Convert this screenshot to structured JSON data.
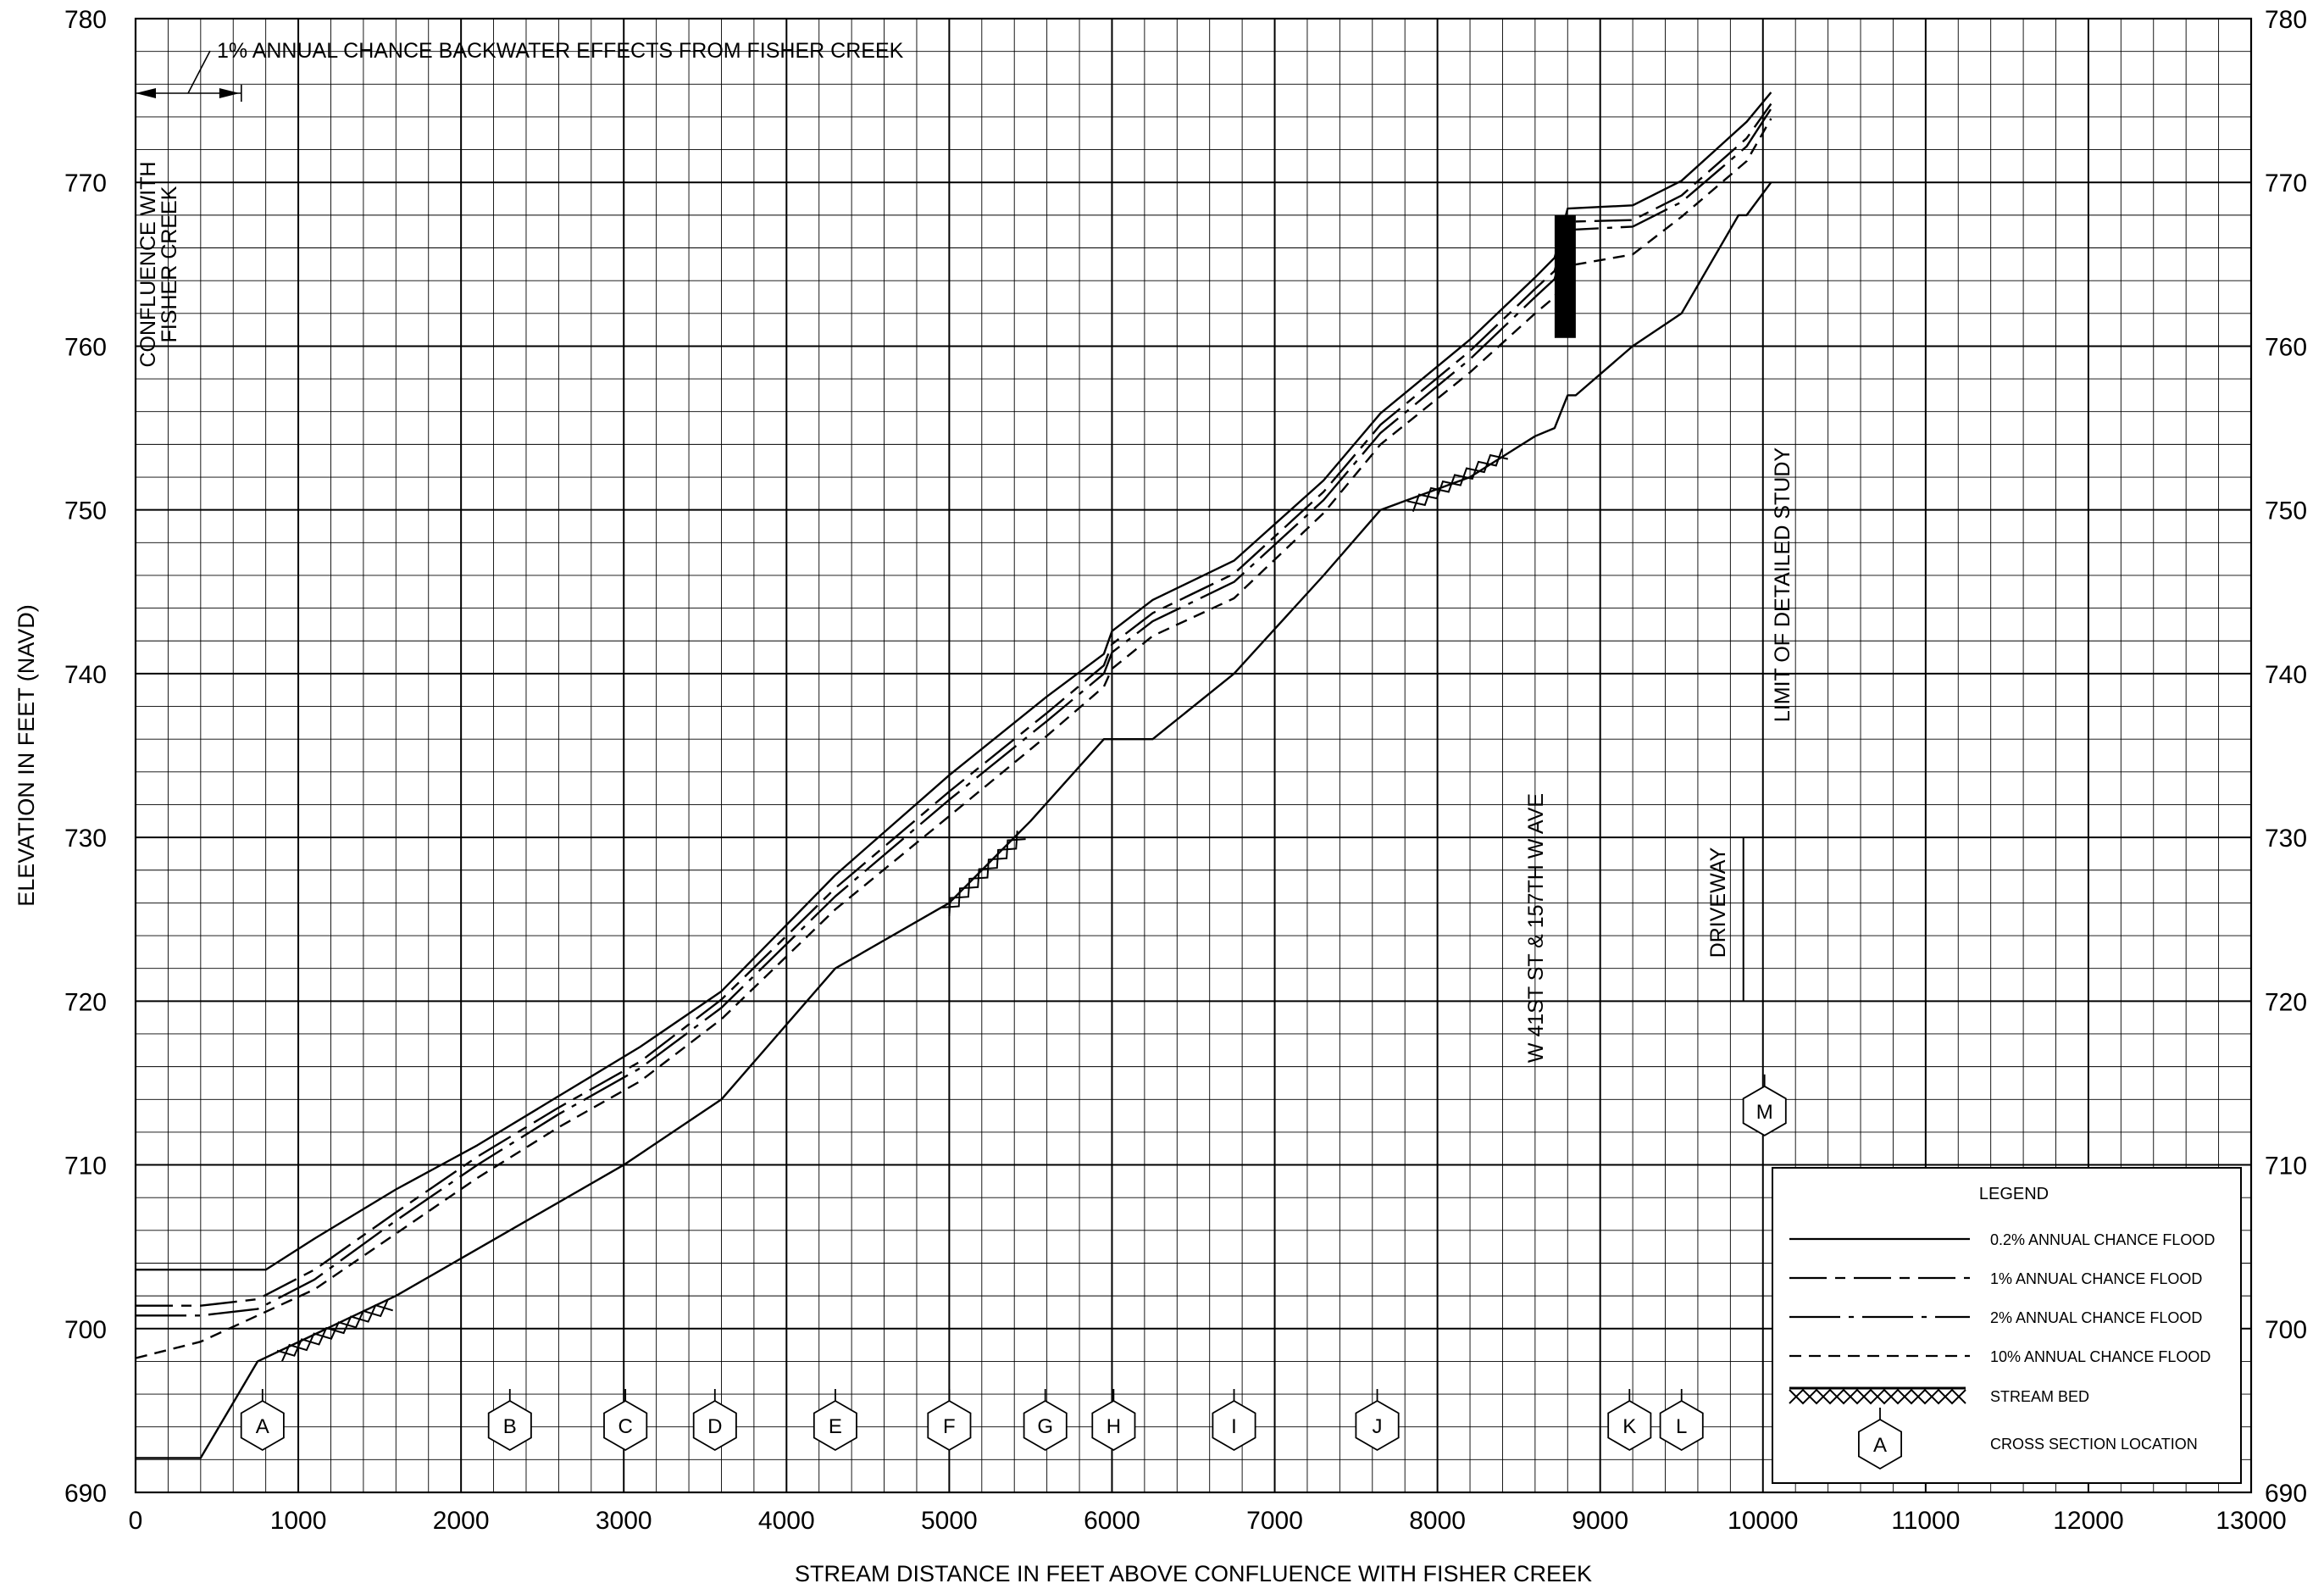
{
  "chart_data": {
    "type": "line",
    "xlabel": "STREAM DISTANCE IN FEET ABOVE CONFLUENCE WITH FISHER CREEK",
    "ylabel": "ELEVATION IN FEET (NAVD)",
    "xlim": [
      0,
      13000
    ],
    "ylim": [
      690,
      780
    ],
    "x_ticks": [
      "0",
      "1000",
      "2000",
      "3000",
      "4000",
      "5000",
      "6000",
      "7000",
      "8000",
      "9000",
      "10000",
      "11000",
      "12000",
      "13000"
    ],
    "y_ticks": [
      "690",
      "700",
      "710",
      "720",
      "730",
      "740",
      "750",
      "760",
      "770",
      "780"
    ],
    "grid": true,
    "legend_position": "bottom-right",
    "legend": {
      "title": "LEGEND",
      "items": [
        "0.2% ANNUAL CHANCE FLOOD",
        "1% ANNUAL CHANCE FLOOD",
        "2% ANNUAL CHANCE FLOOD",
        "10% ANNUAL CHANCE FLOOD",
        "STREAM BED",
        "CROSS SECTION LOCATION"
      ],
      "cross_section_symbol_letter": "A"
    },
    "series": [
      {
        "name": "0.2% ANNUAL CHANCE FLOOD",
        "style": "solid",
        "x": [
          0,
          800,
          1100,
          1600,
          2100,
          2600,
          3100,
          3600,
          4300,
          5000,
          5600,
          5950,
          6000,
          6250,
          6750,
          7300,
          7650,
          8200,
          8600,
          8720,
          8800,
          9200,
          9500,
          9900,
          10050
        ],
        "y": [
          703.6,
          703.6,
          705.5,
          708.5,
          711.2,
          714.2,
          717.2,
          720.6,
          727.7,
          733.8,
          738.6,
          741.2,
          742.6,
          744.5,
          746.9,
          751.8,
          755.9,
          760.4,
          764.2,
          765.4,
          768.4,
          768.6,
          770.1,
          773.7,
          775.5
        ]
      },
      {
        "name": "1% ANNUAL CHANCE FLOOD",
        "style": "dashed",
        "x": [
          0,
          400,
          750,
          1100,
          1600,
          2100,
          2600,
          3100,
          3600,
          4300,
          5000,
          5600,
          5950,
          6000,
          6250,
          6750,
          7300,
          7650,
          8200,
          8600,
          8720,
          8800,
          9200,
          9500,
          9900,
          10050
        ],
        "y": [
          701.4,
          701.4,
          701.8,
          703.6,
          707.1,
          710.5,
          713.5,
          716.3,
          720.1,
          726.9,
          732.8,
          737.6,
          740.5,
          741.8,
          743.7,
          746.1,
          751.1,
          755.2,
          759.7,
          763.5,
          764.6,
          767.6,
          767.7,
          769.2,
          772.7,
          774.8
        ]
      },
      {
        "name": "2% ANNUAL CHANCE FLOOD",
        "style": "dashdot",
        "x": [
          0,
          400,
          750,
          1100,
          1600,
          2100,
          2600,
          3100,
          3600,
          4300,
          5000,
          5600,
          5950,
          6000,
          6250,
          6750,
          7300,
          7650,
          8200,
          8600,
          8720,
          8800,
          9200,
          9500,
          9900,
          10050
        ],
        "y": [
          700.8,
          700.8,
          701.2,
          703.0,
          706.6,
          710.0,
          713.1,
          715.9,
          719.6,
          726.4,
          732.3,
          737.1,
          740.0,
          741.3,
          743.2,
          745.6,
          750.6,
          754.7,
          759.2,
          763.0,
          764.1,
          767.1,
          767.3,
          768.8,
          772.2,
          774.5
        ]
      },
      {
        "name": "10% ANNUAL CHANCE FLOOD",
        "style": "shortdash",
        "x": [
          0,
          400,
          750,
          1100,
          1600,
          2100,
          2600,
          3100,
          3600,
          4300,
          5000,
          5600,
          5950,
          6000,
          6250,
          6750,
          7300,
          7650,
          8200,
          8600,
          8720,
          8800,
          9200,
          9500,
          9900,
          10050
        ],
        "y": [
          698.2,
          699.2,
          700.8,
          702.4,
          705.8,
          709.2,
          712.3,
          715.1,
          718.9,
          725.6,
          731.3,
          736.2,
          739.2,
          740.3,
          742.3,
          744.6,
          749.8,
          754.0,
          758.4,
          762.0,
          763.0,
          764.9,
          765.6,
          767.9,
          771.3,
          773.9
        ]
      },
      {
        "name": "STREAM BED",
        "style": "solid",
        "x": [
          0,
          400,
          750,
          1600,
          2300,
          3000,
          3600,
          4300,
          5000,
          5500,
          5950,
          6250,
          6750,
          7300,
          7650,
          8200,
          8600,
          8720,
          8800,
          8850,
          9200,
          9500,
          9850,
          9900,
          10050
        ],
        "y": [
          692.1,
          692.1,
          698.0,
          702.0,
          706.0,
          710.0,
          714.0,
          722.0,
          726.0,
          731.0,
          736.0,
          736.0,
          740.0,
          746.0,
          750.0,
          752.0,
          754.5,
          755.0,
          757.0,
          757.0,
          760.0,
          762.0,
          768.0,
          768.0,
          770.0
        ]
      }
    ],
    "cross_sections": [
      {
        "label": "A",
        "x": 780
      },
      {
        "label": "B",
        "x": 2300
      },
      {
        "label": "C",
        "x": 3010
      },
      {
        "label": "D",
        "x": 3560
      },
      {
        "label": "E",
        "x": 4300
      },
      {
        "label": "F",
        "x": 5000
      },
      {
        "label": "G",
        "x": 5590
      },
      {
        "label": "H",
        "x": 6010
      },
      {
        "label": "I",
        "x": 6750
      },
      {
        "label": "J",
        "x": 7630
      },
      {
        "label": "K",
        "x": 9180
      },
      {
        "label": "L",
        "x": 9500
      },
      {
        "label": "M",
        "x": 10010,
        "y": 713.3
      }
    ],
    "stream_bed_hatches": [
      {
        "x": [
          900,
          1600
        ],
        "y": [
          698.8,
          702.0
        ]
      },
      {
        "x": [
          5000,
          5500
        ],
        "y": [
          726.0,
          731.0
        ]
      },
      {
        "x": [
          7850,
          8450
        ],
        "y": [
          750.7,
          754.0
        ]
      }
    ],
    "structures": [
      {
        "label": "W 41ST ST & 157TH W AVE",
        "x": [
          8720,
          8850
        ],
        "y": [
          760.5,
          768.0
        ]
      },
      {
        "label": "DRIVEWAY",
        "x": 9880,
        "y": [
          720,
          730
        ]
      }
    ],
    "annotations": {
      "backwater": "1% ANNUAL CHANCE BACKWATER EFFECTS FROM FISHER CREEK",
      "backwater_extent_x": [
        0,
        650
      ],
      "confluence_line1": "CONFLUENCE WITH",
      "confluence_line2": "FISHER CREEK",
      "limit": "LIMIT OF DETAILED STUDY",
      "limit_x": 10050,
      "bridge": "W 41ST ST & 157TH W AVE",
      "driveway": "DRIVEWAY"
    }
  }
}
